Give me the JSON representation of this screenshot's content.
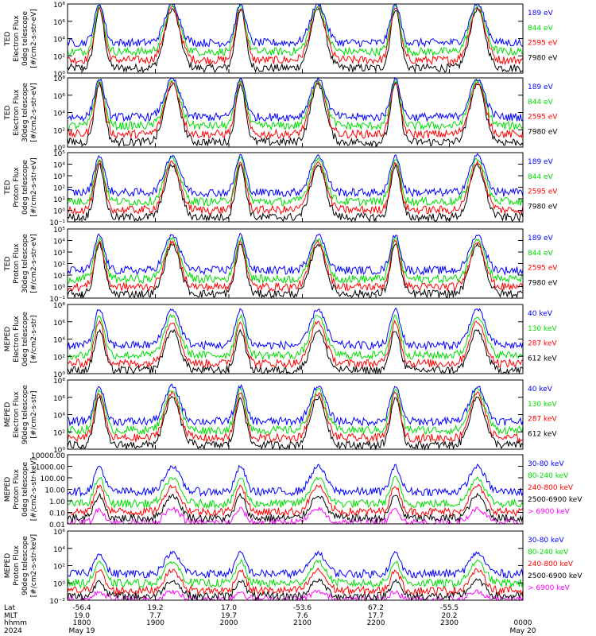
{
  "colors": {
    "blue": "#0000ff",
    "red": "#ff0000",
    "green": "#00dd00",
    "black": "#000000",
    "magenta": "#ff00ff"
  },
  "chart_data": {
    "type": "line",
    "y_scale": "log",
    "time_ticks": [
      "1800",
      "1900",
      "2000",
      "2100",
      "2200",
      "2300",
      "0000"
    ],
    "footer": {
      "row_labels": [
        "Lat",
        "MLT",
        "hhmm",
        "2024"
      ],
      "lat": [
        "-56.4",
        "19.2",
        "17.0",
        "-53.6",
        "67.2",
        "-55.5"
      ],
      "mlt": [
        "19.0",
        "7.7",
        "19.7",
        "7.6",
        "17.7",
        "20.2"
      ],
      "dates": [
        {
          "text": "May 19",
          "tick": 0
        },
        {
          "text": "May 20",
          "tick": 6
        }
      ]
    },
    "panels": [
      {
        "ylabel": [
          "TED",
          "Electron Flux",
          "0deg telescope",
          "[#/cm2-s-str-eV]"
        ],
        "yticks": [
          "10⁰",
          "10²",
          "10⁴",
          "10⁶",
          "10⁸"
        ],
        "ylim": [
          1,
          100000000
        ],
        "series": [
          {
            "name": "7980 eV",
            "color": "#000000",
            "peak": 25000000
          },
          {
            "name": "2595 eV",
            "color": "#ff0000",
            "peak": 40000000
          },
          {
            "name": "844 eV",
            "color": "#00dd00",
            "peak": 60000000
          },
          {
            "name": "189 eV",
            "color": "#0000ff",
            "peak": 100000000
          }
        ]
      },
      {
        "ylabel": [
          "TED",
          "Electron Flux",
          "30deg telescope",
          "[#/cm2-s-str-eV]"
        ],
        "yticks": [
          "10⁰",
          "10²",
          "10⁴",
          "10⁶",
          "10⁸"
        ],
        "ylim": [
          1,
          100000000
        ],
        "series": [
          {
            "name": "7980 eV",
            "color": "#000000",
            "peak": 20000000
          },
          {
            "name": "2595 eV",
            "color": "#ff0000",
            "peak": 30000000
          },
          {
            "name": "844 eV",
            "color": "#00dd00",
            "peak": 50000000
          },
          {
            "name": "189 eV",
            "color": "#0000ff",
            "peak": 80000000
          }
        ]
      },
      {
        "ylabel": [
          "TED",
          "Proton Flux",
          "0deg telescope",
          "[#/cm2-s-str-eV]"
        ],
        "yticks": [
          "10⁻¹",
          "10⁰",
          "10¹",
          "10²",
          "10³",
          "10⁴",
          "10⁵"
        ],
        "ylim": [
          0.1,
          100000
        ],
        "series": [
          {
            "name": "7980 eV",
            "color": "#000000",
            "peak": 8000
          },
          {
            "name": "2595 eV",
            "color": "#ff0000",
            "peak": 15000
          },
          {
            "name": "844 eV",
            "color": "#00dd00",
            "peak": 30000
          },
          {
            "name": "189 eV",
            "color": "#0000ff",
            "peak": 60000
          }
        ]
      },
      {
        "ylabel": [
          "TED",
          "Proton Flux",
          "30deg telescope",
          "[#/cm2-s-str-eV]"
        ],
        "yticks": [
          "10⁻¹",
          "10⁰",
          "10¹",
          "10²",
          "10³",
          "10⁴",
          "10⁵"
        ],
        "ylim": [
          0.1,
          100000
        ],
        "series": [
          {
            "name": "7980 eV",
            "color": "#000000",
            "peak": 5000
          },
          {
            "name": "2595 eV",
            "color": "#ff0000",
            "peak": 8000
          },
          {
            "name": "844 eV",
            "color": "#00dd00",
            "peak": 15000
          },
          {
            "name": "189 eV",
            "color": "#0000ff",
            "peak": 30000
          }
        ]
      },
      {
        "ylabel": [
          "MEPED",
          "Electron Flux",
          "0deg telescope",
          "[#/cm2-s-str]"
        ],
        "yticks": [
          "10⁰",
          "10²",
          "10⁴",
          "10⁶",
          "10⁸"
        ],
        "ylim": [
          1,
          100000000
        ],
        "series": [
          {
            "name": "612 keV",
            "color": "#000000",
            "peak": 100000
          },
          {
            "name": "287 keV",
            "color": "#ff0000",
            "peak": 1000000
          },
          {
            "name": "130 keV",
            "color": "#00dd00",
            "peak": 5000000
          },
          {
            "name": "40 keV",
            "color": "#0000ff",
            "peak": 30000000
          }
        ]
      },
      {
        "ylabel": [
          "MEPED",
          "Electron Flux",
          "90deg telescope",
          "[#/cm2-s-str]"
        ],
        "yticks": [
          "10⁰",
          "10²",
          "10⁴",
          "10⁶",
          "10⁸"
        ],
        "ylim": [
          1,
          100000000
        ],
        "series": [
          {
            "name": "612 keV",
            "color": "#000000",
            "peak": 1000000
          },
          {
            "name": "287 keV",
            "color": "#ff0000",
            "peak": 3000000
          },
          {
            "name": "130 keV",
            "color": "#00dd00",
            "peak": 8000000
          },
          {
            "name": "40 keV",
            "color": "#0000ff",
            "peak": 20000000
          }
        ]
      },
      {
        "ylabel": [
          "MEPED",
          "Proton Flux",
          "0deg telescope",
          "[#/cm2-s-str-keV]"
        ],
        "yticks": [
          "0.01",
          "0.10",
          "1.00",
          "10.00",
          "100.00",
          "1000.00",
          "10000.00"
        ],
        "ylim": [
          0.01,
          10000
        ],
        "series": [
          {
            "name": "> 6900 keV",
            "color": "#ff00ff",
            "peak": 0.2
          },
          {
            "name": "2500-6900 keV",
            "color": "#000000",
            "peak": 3
          },
          {
            "name": "240-800 keV",
            "color": "#ff0000",
            "peak": 20
          },
          {
            "name": "80-240 keV",
            "color": "#00dd00",
            "peak": 100
          },
          {
            "name": "30-80 keV",
            "color": "#0000ff",
            "peak": 1000
          }
        ]
      },
      {
        "ylabel": [
          "MEPED",
          "Proton Flux",
          "90deg telescope",
          "[#/cm2-s-str-keV]"
        ],
        "yticks": [
          "10⁻²",
          "10⁰",
          "10²",
          "10⁴",
          "10⁶"
        ],
        "ylim": [
          0.01,
          1000000
        ],
        "series": [
          {
            "name": "> 6900 keV",
            "color": "#ff00ff",
            "peak": 0.1
          },
          {
            "name": "2500-6900 keV",
            "color": "#000000",
            "peak": 2
          },
          {
            "name": "240-800 keV",
            "color": "#ff0000",
            "peak": 30
          },
          {
            "name": "80-240 keV",
            "color": "#00dd00",
            "peak": 300
          },
          {
            "name": "30-80 keV",
            "color": "#0000ff",
            "peak": 3000
          }
        ]
      }
    ]
  }
}
